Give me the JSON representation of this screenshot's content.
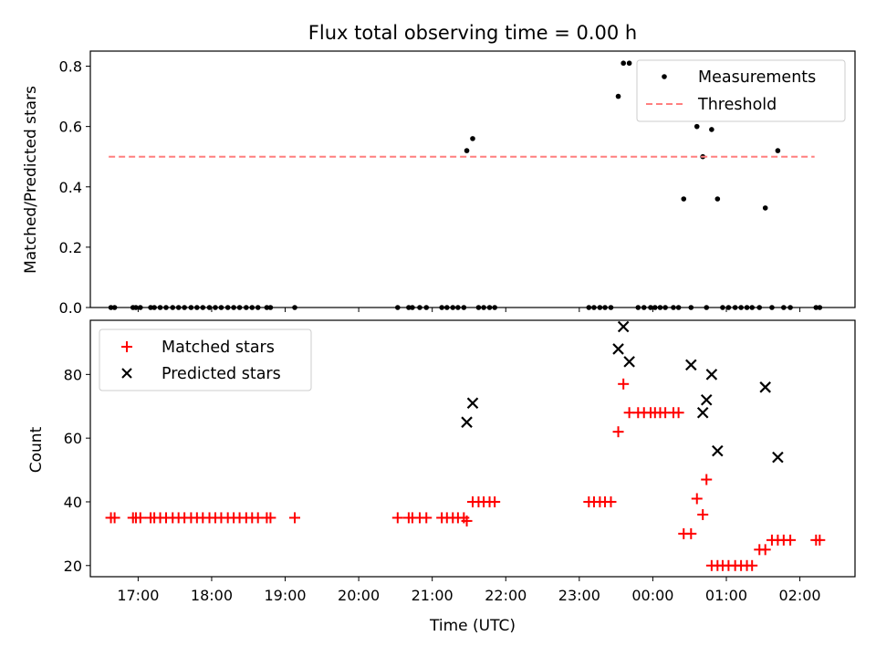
{
  "chart_data": [
    {
      "type": "scatter",
      "title": "Flux total observing time = 0.00 h",
      "xlabel": "",
      "ylabel": "Matched/Predicted stars",
      "xlim": [
        16.35,
        26.75
      ],
      "ylim": [
        0,
        0.85
      ],
      "yticks": [
        0.0,
        0.2,
        0.4,
        0.6,
        0.8
      ],
      "ytick_labels": [
        "0.0",
        "0.2",
        "0.4",
        "0.6",
        "0.8"
      ],
      "legend": {
        "position": "top-right",
        "entries": [
          "Measurements",
          "Threshold"
        ]
      },
      "series": [
        {
          "name": "Measurements",
          "marker": "dot",
          "color": "#000000",
          "x": [
            16.63,
            16.68,
            16.93,
            16.97,
            17.03,
            17.17,
            17.22,
            17.3,
            17.38,
            17.47,
            17.55,
            17.63,
            17.72,
            17.8,
            17.88,
            17.97,
            18.05,
            18.13,
            18.22,
            18.3,
            18.38,
            18.47,
            18.55,
            18.63,
            18.75,
            18.8,
            19.13,
            20.53,
            20.68,
            20.73,
            20.83,
            20.92,
            21.13,
            21.2,
            21.28,
            21.35,
            21.43,
            21.47,
            21.55,
            21.63,
            21.7,
            21.78,
            21.85,
            23.13,
            23.2,
            23.28,
            23.35,
            23.43,
            23.53,
            23.6,
            23.68,
            23.8,
            23.88,
            23.97,
            24.03,
            24.1,
            24.17,
            24.28,
            24.35,
            24.42,
            24.52,
            24.6,
            24.68,
            24.73,
            24.8,
            24.88,
            24.95,
            25.03,
            25.12,
            25.2,
            25.28,
            25.35,
            25.45,
            25.53,
            25.62,
            25.7,
            25.78,
            25.87,
            26.22,
            26.27
          ],
          "y": [
            0,
            0,
            0,
            0,
            0,
            0,
            0,
            0,
            0,
            0,
            0,
            0,
            0,
            0,
            0,
            0,
            0,
            0,
            0,
            0,
            0,
            0,
            0,
            0,
            0,
            0,
            0,
            0,
            0,
            0,
            0,
            0,
            0,
            0,
            0,
            0,
            0,
            0.52,
            0.56,
            0,
            0,
            0,
            0,
            0,
            0,
            0,
            0,
            0,
            0.7,
            0.81,
            0.81,
            0,
            0,
            0,
            0,
            0,
            0,
            0,
            0,
            0.36,
            0,
            0.6,
            0.5,
            0,
            0.59,
            0.36,
            0,
            0,
            0,
            0,
            0,
            0,
            0,
            0.33,
            0,
            0.52,
            0,
            0,
            0,
            0
          ]
        },
        {
          "name": "Threshold",
          "type": "line",
          "style": "dashed",
          "color": "#ff7f7f",
          "x": [
            16.6,
            26.2
          ],
          "y": [
            0.5,
            0.5
          ]
        }
      ]
    },
    {
      "type": "scatter",
      "title": "",
      "xlabel": "Time (UTC)",
      "ylabel": "Count",
      "xlim": [
        16.35,
        26.75
      ],
      "ylim": [
        16.5,
        97
      ],
      "yticks": [
        20,
        40,
        60,
        80
      ],
      "ytick_labels": [
        "20",
        "40",
        "60",
        "80"
      ],
      "xticks": [
        17,
        18,
        19,
        20,
        21,
        22,
        23,
        24,
        25,
        26
      ],
      "xtick_labels": [
        "17:00",
        "18:00",
        "19:00",
        "20:00",
        "21:00",
        "22:00",
        "23:00",
        "00:00",
        "01:00",
        "02:00"
      ],
      "legend": {
        "position": "top-left",
        "entries": [
          "Matched stars",
          "Predicted stars"
        ]
      },
      "series": [
        {
          "name": "Matched stars",
          "marker": "plus",
          "color": "#ff0000",
          "x": [
            16.63,
            16.68,
            16.93,
            16.97,
            17.03,
            17.17,
            17.22,
            17.3,
            17.38,
            17.47,
            17.55,
            17.63,
            17.72,
            17.8,
            17.88,
            17.97,
            18.05,
            18.13,
            18.22,
            18.3,
            18.38,
            18.47,
            18.55,
            18.63,
            18.75,
            18.8,
            19.13,
            20.53,
            20.68,
            20.73,
            20.83,
            20.92,
            21.13,
            21.2,
            21.28,
            21.35,
            21.43,
            21.47,
            21.55,
            21.63,
            21.7,
            21.78,
            21.85,
            23.13,
            23.2,
            23.28,
            23.35,
            23.43,
            23.53,
            23.6,
            23.68,
            23.8,
            23.88,
            23.97,
            24.03,
            24.1,
            24.17,
            24.28,
            24.35,
            24.42,
            24.52,
            24.6,
            24.68,
            24.73,
            24.8,
            24.88,
            24.95,
            25.03,
            25.12,
            25.2,
            25.28,
            25.35,
            25.45,
            25.53,
            25.62,
            25.7,
            25.78,
            25.87,
            26.22,
            26.27
          ],
          "y": [
            35,
            35,
            35,
            35,
            35,
            35,
            35,
            35,
            35,
            35,
            35,
            35,
            35,
            35,
            35,
            35,
            35,
            35,
            35,
            35,
            35,
            35,
            35,
            35,
            35,
            35,
            35,
            35,
            35,
            35,
            35,
            35,
            35,
            35,
            35,
            35,
            35,
            34,
            40,
            40,
            40,
            40,
            40,
            40,
            40,
            40,
            40,
            40,
            62,
            77,
            68,
            68,
            68,
            68,
            68,
            68,
            68,
            68,
            68,
            30,
            30,
            41,
            36,
            47,
            20,
            20,
            20,
            20,
            20,
            20,
            20,
            20,
            25,
            25,
            28,
            28,
            28,
            28,
            28,
            28
          ]
        },
        {
          "name": "Predicted stars",
          "marker": "x",
          "color": "#000000",
          "x": [
            21.47,
            21.55,
            23.53,
            23.6,
            23.68,
            24.52,
            24.68,
            24.73,
            24.8,
            24.88,
            25.53,
            25.7
          ],
          "y": [
            65,
            71,
            88,
            95,
            84,
            83,
            68,
            72,
            80,
            56,
            76,
            54
          ]
        }
      ]
    }
  ]
}
